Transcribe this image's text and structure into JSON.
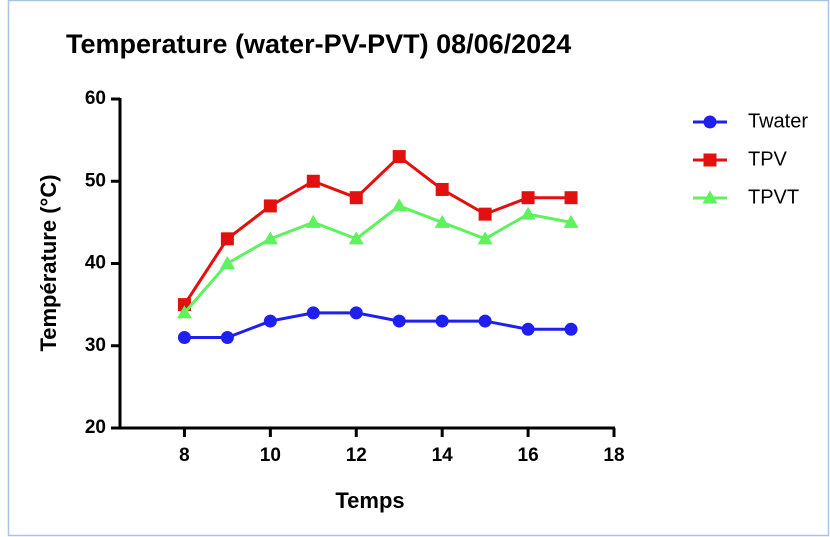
{
  "chart_data": {
    "type": "line",
    "title": "Temperature (water-PV-PVT) 08/06/2024",
    "x_label": "Temps",
    "y_label": "Température (°C)",
    "x": [
      8,
      9,
      10,
      11,
      12,
      13,
      14,
      15,
      16,
      17
    ],
    "series": [
      {
        "name": "Twater",
        "color": "#1f1fef",
        "marker": "circle",
        "values": [
          31,
          31,
          33,
          34,
          34,
          33,
          33,
          33,
          32,
          32
        ]
      },
      {
        "name": "TPV",
        "color": "#e31010",
        "marker": "square",
        "values": [
          35,
          43,
          47,
          50,
          48,
          53,
          49,
          46,
          48,
          48
        ]
      },
      {
        "name": "TPVT",
        "color": "#5ef25e",
        "marker": "triangle",
        "values": [
          34,
          40,
          43,
          45,
          43,
          47,
          45,
          43,
          46,
          45
        ]
      }
    ],
    "xlim": [
      6.5,
      18
    ],
    "xticks": [
      8,
      10,
      12,
      14,
      16,
      18
    ],
    "ylim": [
      20,
      60
    ],
    "yticks": [
      20,
      30,
      40,
      50,
      60
    ],
    "legend": "right"
  }
}
